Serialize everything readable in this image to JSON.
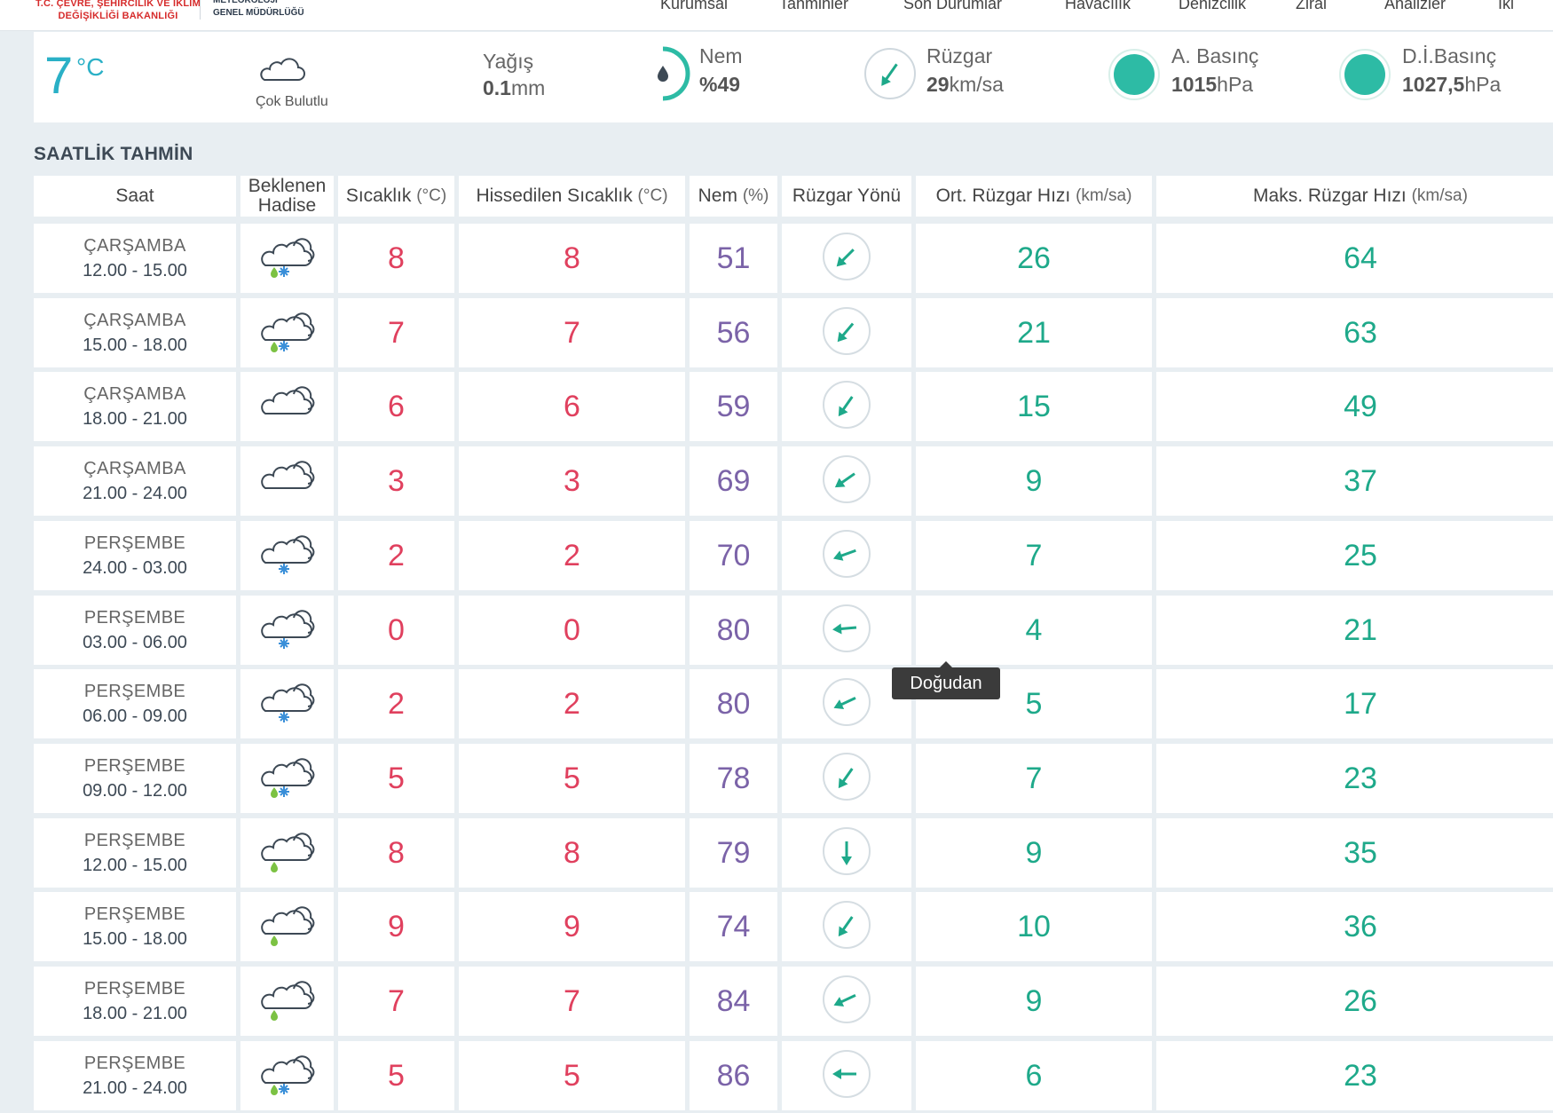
{
  "header": {
    "ministry": "T.C. ÇEVRE, ŞEHİRCİLİK VE İKLİM DEĞİŞİKLİĞİ BAKANLIĞI",
    "agency_line1": "METEOROLOJİ",
    "agency_line2": "GENEL MÜDÜRLÜĞÜ",
    "nav": [
      "Kurumsal",
      "Tahminler",
      "Son Durumlar",
      "Havacılık",
      "Denizcilik",
      "Zirai",
      "Analizler",
      "İkl"
    ]
  },
  "current": {
    "temperature": "7",
    "temperature_unit": "°C",
    "condition": "Çok Bulutlu",
    "precip_label": "Yağış",
    "precip_value": "0.1",
    "precip_unit": "mm",
    "humidity_label": "Nem",
    "humidity_value": "%49",
    "wind_label": "Rüzgar",
    "wind_value": "29",
    "wind_unit": "km/sa",
    "pressure_label": "A. Basınç",
    "pressure_value": "1015",
    "pressure_unit": "hPa",
    "sea_pressure_label": "D.İ.Basınç",
    "sea_pressure_value": "1027,5",
    "sea_pressure_unit": "hPa",
    "accent_color": "#2ab0c6",
    "gauge_color": "#2dbba5"
  },
  "section_title": "SAATLİK TAHMİN",
  "columns": {
    "time": "Saat",
    "event_line1": "Beklenen",
    "event_line2": "Hadise",
    "temp": "Sıcaklık",
    "temp_unit": "(°C)",
    "feels": "Hissedilen Sıcaklık",
    "feels_unit": "(°C)",
    "humidity": "Nem",
    "humidity_unit": "(%)",
    "wind_dir": "Rüzgar Yönü",
    "avg_wind": "Ort. Rüzgar Hızı",
    "avg_wind_unit": "(km/sa)",
    "max_wind": "Maks. Rüzgar Hızı",
    "max_wind_unit": "(km/sa)"
  },
  "rows": [
    {
      "day": "ÇARŞAMBA",
      "time": "12.00 - 15.00",
      "icon": "cloud-rain-snow-icon",
      "temp": "8",
      "feels": "8",
      "humidity": "51",
      "wind_dir_deg": 225,
      "avg_wind": "26",
      "max_wind": "64"
    },
    {
      "day": "ÇARŞAMBA",
      "time": "15.00 - 18.00",
      "icon": "cloud-rain-snow-icon",
      "temp": "7",
      "feels": "7",
      "humidity": "56",
      "wind_dir_deg": 220,
      "avg_wind": "21",
      "max_wind": "63"
    },
    {
      "day": "ÇARŞAMBA",
      "time": "18.00 - 21.00",
      "icon": "cloud-icon",
      "temp": "6",
      "feels": "6",
      "humidity": "59",
      "wind_dir_deg": 215,
      "avg_wind": "15",
      "max_wind": "49"
    },
    {
      "day": "ÇARŞAMBA",
      "time": "21.00 - 24.00",
      "icon": "cloud-icon",
      "temp": "3",
      "feels": "3",
      "humidity": "69",
      "wind_dir_deg": 235,
      "avg_wind": "9",
      "max_wind": "37"
    },
    {
      "day": "PERŞEMBE",
      "time": "24.00 - 03.00",
      "icon": "cloud-snow-icon",
      "temp": "2",
      "feels": "2",
      "humidity": "70",
      "wind_dir_deg": 250,
      "avg_wind": "7",
      "max_wind": "25"
    },
    {
      "day": "PERŞEMBE",
      "time": "03.00 - 06.00",
      "icon": "cloud-snow-icon",
      "temp": "0",
      "feels": "0",
      "humidity": "80",
      "wind_dir_deg": 265,
      "avg_wind": "4",
      "max_wind": "21"
    },
    {
      "day": "PERŞEMBE",
      "time": "06.00 - 09.00",
      "icon": "cloud-snow-icon",
      "temp": "2",
      "feels": "2",
      "humidity": "80",
      "wind_dir_deg": 245,
      "avg_wind": "5",
      "max_wind": "17"
    },
    {
      "day": "PERŞEMBE",
      "time": "09.00 - 12.00",
      "icon": "cloud-rain-snow-icon",
      "temp": "5",
      "feels": "5",
      "humidity": "78",
      "wind_dir_deg": 215,
      "avg_wind": "7",
      "max_wind": "23"
    },
    {
      "day": "PERŞEMBE",
      "time": "12.00 - 15.00",
      "icon": "cloud-rain-icon",
      "temp": "8",
      "feels": "8",
      "humidity": "79",
      "wind_dir_deg": 180,
      "avg_wind": "9",
      "max_wind": "35"
    },
    {
      "day": "PERŞEMBE",
      "time": "15.00 - 18.00",
      "icon": "cloud-rain-icon",
      "temp": "9",
      "feels": "9",
      "humidity": "74",
      "wind_dir_deg": 215,
      "avg_wind": "10",
      "max_wind": "36"
    },
    {
      "day": "PERŞEMBE",
      "time": "18.00 - 21.00",
      "icon": "cloud-rain-icon",
      "temp": "7",
      "feels": "7",
      "humidity": "84",
      "wind_dir_deg": 245,
      "avg_wind": "9",
      "max_wind": "26"
    },
    {
      "day": "PERŞEMBE",
      "time": "21.00 - 24.00",
      "icon": "cloud-rain-snow-icon",
      "temp": "5",
      "feels": "5",
      "humidity": "86",
      "wind_dir_deg": 270,
      "avg_wind": "6",
      "max_wind": "23"
    }
  ],
  "tooltip": "Doğudan",
  "colors": {
    "temperature": "#e0405e",
    "humidity": "#7b63a8",
    "wind": "#1ea98a",
    "background": "#e8eef2"
  }
}
